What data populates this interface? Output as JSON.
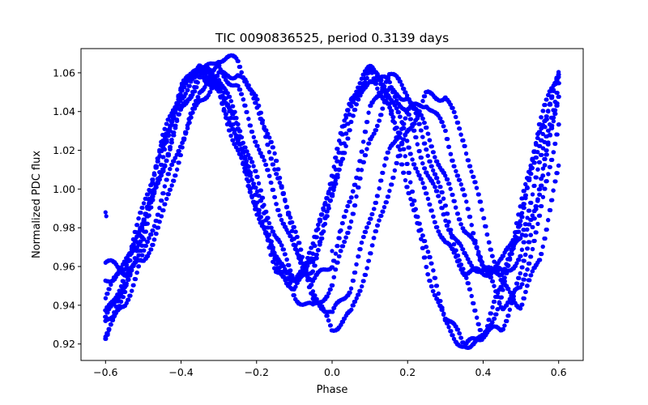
{
  "chart_data": {
    "type": "scatter",
    "title": "TIC 0090836525, period 0.3139 days",
    "xlabel": "Phase",
    "ylabel": "Normalized PDC flux",
    "xlim": [
      -0.665,
      0.665
    ],
    "ylim": [
      0.9115,
      1.0725
    ],
    "xticks": [
      -0.6,
      -0.4,
      -0.2,
      0.0,
      0.2,
      0.4,
      0.6
    ],
    "xtick_labels": [
      "−0.6",
      "−0.4",
      "−0.2",
      "0.0",
      "0.2",
      "0.4",
      "0.6"
    ],
    "yticks": [
      0.92,
      0.94,
      0.96,
      0.98,
      1.0,
      1.02,
      1.04,
      1.06
    ],
    "ytick_labels": [
      "0.92",
      "0.94",
      "0.96",
      "0.98",
      "1.00",
      "1.02",
      "1.04",
      "1.06"
    ],
    "grid": false,
    "marker_color": "#0000ff",
    "series": [
      {
        "x": [
          -0.6,
          -0.55,
          -0.5,
          -0.45,
          -0.4,
          -0.35,
          -0.3,
          -0.25,
          -0.2,
          -0.15,
          -0.1,
          -0.05,
          0.0,
          0.05,
          0.1,
          0.15,
          0.2,
          0.25,
          0.3,
          0.35,
          0.4,
          0.45,
          0.5,
          0.55,
          0.6
        ],
        "y": [
          0.962,
          0.958,
          0.962,
          0.985,
          1.02,
          1.052,
          1.062,
          1.052,
          1.025,
          0.995,
          0.968,
          0.952,
          0.962,
          0.995,
          1.04,
          1.06,
          1.05,
          1.03,
          1.005,
          0.98,
          0.962,
          0.956,
          0.965,
          1.0,
          1.048
        ]
      },
      {
        "x": [
          -0.6,
          -0.55,
          -0.5,
          -0.45,
          -0.4,
          -0.35,
          -0.3,
          -0.25,
          -0.2,
          -0.15,
          -0.1,
          -0.05,
          0.0,
          0.05,
          0.1,
          0.15,
          0.2,
          0.25,
          0.3,
          0.35,
          0.4,
          0.45,
          0.5,
          0.55,
          0.6
        ],
        "y": [
          0.952,
          0.96,
          0.978,
          1.01,
          1.04,
          1.06,
          1.058,
          1.035,
          1.005,
          0.975,
          0.955,
          0.962,
          0.995,
          1.035,
          1.058,
          1.055,
          1.038,
          1.01,
          0.985,
          0.965,
          0.957,
          0.958,
          0.975,
          1.012,
          1.055
        ]
      },
      {
        "x": [
          -0.6,
          -0.55,
          -0.5,
          -0.45,
          -0.4,
          -0.35,
          -0.3,
          -0.25,
          -0.2,
          -0.15,
          -0.1,
          -0.05,
          0.0,
          0.05,
          0.1,
          0.15,
          0.2,
          0.25,
          0.3,
          0.35,
          0.4,
          0.45,
          0.5,
          0.55,
          0.6
        ],
        "y": [
          0.945,
          0.96,
          0.99,
          1.025,
          1.052,
          1.062,
          1.048,
          1.02,
          0.99,
          0.962,
          0.95,
          0.968,
          1.005,
          1.045,
          1.062,
          1.05,
          1.025,
          0.995,
          0.972,
          0.958,
          0.956,
          0.962,
          0.985,
          1.025,
          1.058
        ]
      },
      {
        "x": [
          -0.6,
          -0.55,
          -0.5,
          -0.45,
          -0.4,
          -0.35,
          -0.3,
          -0.25,
          -0.2,
          -0.15,
          -0.1,
          -0.05,
          0.0,
          0.05,
          0.1,
          0.15,
          0.2,
          0.25,
          0.3,
          0.35,
          0.4,
          0.45,
          0.5,
          0.55,
          0.6
        ],
        "y": [
          0.93,
          0.945,
          0.975,
          1.01,
          1.04,
          1.058,
          1.068,
          1.066,
          1.045,
          1.01,
          0.975,
          0.945,
          0.935,
          0.95,
          0.985,
          1.018,
          1.04,
          1.045,
          1.03,
          0.995,
          0.96,
          0.94,
          0.948,
          0.985,
          1.035
        ]
      },
      {
        "x": [
          -0.6,
          -0.55,
          -0.5,
          -0.45,
          -0.4,
          -0.35,
          -0.3,
          -0.25,
          -0.2,
          -0.15,
          -0.1,
          -0.05,
          0.0,
          0.05,
          0.1,
          0.15,
          0.2,
          0.25,
          0.3,
          0.35,
          0.4,
          0.45,
          0.5,
          0.55,
          0.6
        ],
        "y": [
          0.926,
          0.94,
          0.965,
          0.996,
          1.025,
          1.045,
          1.058,
          1.06,
          1.045,
          1.015,
          0.978,
          0.945,
          0.928,
          0.935,
          0.965,
          1.0,
          1.03,
          1.048,
          1.048,
          1.025,
          0.985,
          0.95,
          0.94,
          0.965,
          1.01
        ]
      },
      {
        "x": [
          -0.6,
          -0.55,
          -0.5,
          -0.45,
          -0.4,
          -0.35,
          -0.3,
          -0.25,
          -0.2,
          -0.15,
          -0.1,
          -0.05,
          0.0,
          0.05,
          0.1,
          0.15,
          0.2,
          0.25,
          0.3,
          0.35,
          0.4,
          0.45,
          0.5,
          0.55,
          0.6
        ],
        "y": [
          0.935,
          0.955,
          0.985,
          1.02,
          1.05,
          1.064,
          1.055,
          1.03,
          0.998,
          0.968,
          0.945,
          0.938,
          0.95,
          0.985,
          1.025,
          1.05,
          1.048,
          1.022,
          0.99,
          0.955,
          0.925,
          0.928,
          0.955,
          1.0,
          1.05
        ]
      },
      {
        "x": [
          -0.6,
          -0.55,
          -0.5,
          -0.45,
          -0.4,
          -0.35,
          -0.3,
          -0.25,
          -0.2,
          -0.15,
          -0.1,
          -0.05,
          0.0,
          0.05,
          0.1,
          0.15,
          0.2,
          0.25,
          0.3,
          0.35,
          0.4,
          0.45,
          0.5,
          0.55,
          0.6
        ],
        "y": [
          0.925,
          0.948,
          0.98,
          1.016,
          1.048,
          1.062,
          1.055,
          1.028,
          0.995,
          0.962,
          0.948,
          0.96,
          0.996,
          1.04,
          1.063,
          1.048,
          1.01,
          0.968,
          0.935,
          0.92,
          0.922,
          0.945,
          0.985,
          1.03,
          1.058
        ]
      },
      {
        "x": [
          -0.6,
          -0.55,
          -0.5,
          -0.45,
          -0.4,
          -0.35,
          -0.3,
          -0.25,
          -0.2,
          -0.15,
          -0.1,
          -0.05,
          0.0,
          0.05,
          0.1,
          0.15,
          0.2,
          0.25,
          0.3,
          0.35,
          0.4,
          0.45,
          0.5,
          0.55,
          0.6
        ],
        "y": [
          0.932,
          0.952,
          0.985,
          1.022,
          1.052,
          1.064,
          1.052,
          1.022,
          0.99,
          0.96,
          0.952,
          0.97,
          1.008,
          1.048,
          1.062,
          1.042,
          1.002,
          0.96,
          0.93,
          0.918,
          0.925,
          0.95,
          0.99,
          1.035,
          1.06
        ]
      }
    ],
    "outliers": {
      "x": [
        -0.6,
        -0.598,
        -0.05,
        0.02,
        0.0
      ],
      "y": [
        0.988,
        0.986,
        0.945,
        0.978,
        0.968
      ]
    }
  }
}
